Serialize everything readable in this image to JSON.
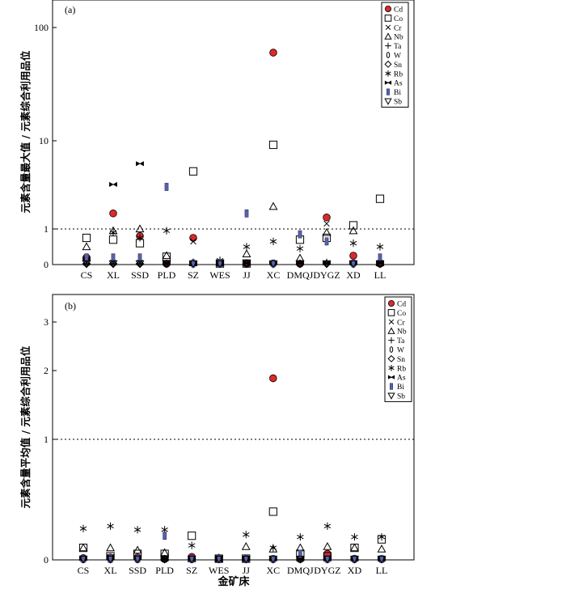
{
  "chart_data": [
    {
      "type": "scatter",
      "panel_label": "(a)",
      "ylabel": "元素含量最大值 / 元素综合利用品位",
      "xlabel": "",
      "categories": [
        "CS",
        "XL",
        "SSD",
        "PLD",
        "SZ",
        "WES",
        "JJ",
        "XC",
        "DMQJ",
        "DYGZ",
        "XD",
        "LL"
      ],
      "y_scale": "piecewise",
      "yticks": [
        0,
        1,
        10,
        100
      ],
      "ytick_labels": [
        "0",
        "1",
        "10",
        "100"
      ],
      "reference_line": 1,
      "series": [
        {
          "name": "Cd",
          "marker": "filled-circle",
          "values": [
            0.2,
            1.5,
            0.8,
            0.02,
            0.75,
            0.02,
            0.02,
            60,
            0.02,
            1.35,
            0.25,
            0.02
          ]
        },
        {
          "name": "Co",
          "marker": "open-square",
          "values": [
            0.75,
            0.7,
            0.6,
            0.22,
            4.5,
            0.03,
            0.03,
            9,
            0.7,
            0.75,
            1.1,
            2.2
          ]
        },
        {
          "name": "Cr",
          "marker": "x",
          "values": [
            0.05,
            0.05,
            0.05,
            0.03,
            0.65,
            0.04,
            0.04,
            0.03,
            0.04,
            1.15,
            0.04,
            0.05
          ]
        },
        {
          "name": "Nb",
          "marker": "open-triangle",
          "values": [
            0.5,
            0.95,
            1.0,
            0.25,
            0.05,
            0.05,
            0.3,
            1.8,
            0.18,
            0.9,
            0.95,
            0.05
          ]
        },
        {
          "name": "Ta",
          "marker": "plus",
          "values": [
            0.02,
            0.02,
            0.02,
            0.02,
            0.02,
            0.02,
            0.02,
            0.02,
            0.02,
            0.02,
            0.02,
            0.02
          ]
        },
        {
          "name": "W",
          "marker": "open-ellipse",
          "values": [
            0.02,
            0.02,
            0.02,
            0.02,
            0.02,
            0.02,
            0.02,
            0.02,
            0.02,
            0.02,
            0.02,
            0.02
          ]
        },
        {
          "name": "Sn",
          "marker": "open-diamond",
          "values": [
            0.02,
            0.02,
            0.02,
            0.02,
            0.02,
            0.02,
            0.02,
            0.02,
            0.02,
            0.02,
            0.02,
            0.02
          ]
        },
        {
          "name": "Rb",
          "marker": "star",
          "values": [
            0.18,
            0.9,
            0.75,
            0.95,
            0.05,
            0.12,
            0.5,
            0.65,
            0.45,
            0.06,
            0.6,
            0.5
          ]
        },
        {
          "name": "As",
          "marker": "bowtie",
          "values": [
            0.15,
            3.2,
            5.5,
            0.05,
            0.05,
            0.05,
            0.05,
            0.05,
            0.05,
            0.05,
            0.05,
            0.05
          ]
        },
        {
          "name": "Bi",
          "marker": "filled-bar",
          "values": [
            0.2,
            0.2,
            0.2,
            3.0,
            0.03,
            0.03,
            1.5,
            0.03,
            0.85,
            0.65,
            0.03,
            0.2
          ]
        },
        {
          "name": "Sb",
          "marker": "open-down-triangle",
          "values": [
            0.01,
            0.01,
            0.01,
            0.01,
            0.01,
            0.01,
            0.01,
            0.01,
            0.01,
            0.01,
            0.01,
            0.01
          ]
        }
      ]
    },
    {
      "type": "scatter",
      "panel_label": "(b)",
      "ylabel": "元素含量平均值 / 元素综合利用品位",
      "xlabel": "金矿床",
      "categories": [
        "CS",
        "XL",
        "SSD",
        "PLD",
        "SZ",
        "WES",
        "JJ",
        "XC",
        "DMQJ",
        "DYGZ",
        "XD",
        "LL"
      ],
      "y_scale": "piecewise",
      "yticks": [
        0,
        1,
        2,
        3
      ],
      "ytick_labels": [
        "0",
        "1",
        "2",
        "3"
      ],
      "reference_line": 1,
      "series": [
        {
          "name": "Cd",
          "marker": "filled-circle",
          "values": [
            0.015,
            0.02,
            0.02,
            0.005,
            0.025,
            0.005,
            0.005,
            1.85,
            0.005,
            0.05,
            0.01,
            0.005
          ]
        },
        {
          "name": "Co",
          "marker": "open-square",
          "values": [
            0.1,
            0.03,
            0.05,
            0.05,
            0.2,
            0.01,
            0.01,
            0.4,
            0.05,
            0.03,
            0.1,
            0.17
          ]
        },
        {
          "name": "Cr",
          "marker": "x",
          "values": [
            0.005,
            0.005,
            0.005,
            0.005,
            0.005,
            0.005,
            0.005,
            0.005,
            0.005,
            0.005,
            0.005,
            0.005
          ]
        },
        {
          "name": "Nb",
          "marker": "open-triangle",
          "values": [
            0.1,
            0.1,
            0.08,
            0.06,
            0.01,
            0.01,
            0.11,
            0.09,
            0.1,
            0.11,
            0.1,
            0.09
          ]
        },
        {
          "name": "Ta",
          "marker": "plus",
          "values": [
            0.005,
            0.005,
            0.005,
            0.005,
            0.005,
            0.005,
            0.005,
            0.005,
            0.005,
            0.005,
            0.005,
            0.005
          ]
        },
        {
          "name": "W",
          "marker": "open-ellipse",
          "values": [
            0.005,
            0.005,
            0.005,
            0.005,
            0.005,
            0.005,
            0.005,
            0.005,
            0.005,
            0.005,
            0.005,
            0.005
          ]
        },
        {
          "name": "Sn",
          "marker": "open-diamond",
          "values": [
            0.003,
            0.003,
            0.003,
            0.003,
            0.003,
            0.003,
            0.003,
            0.003,
            0.003,
            0.003,
            0.003,
            0.003
          ]
        },
        {
          "name": "Rb",
          "marker": "star",
          "values": [
            0.26,
            0.28,
            0.25,
            0.25,
            0.12,
            0.02,
            0.21,
            0.1,
            0.19,
            0.28,
            0.19,
            0.19
          ]
        },
        {
          "name": "As",
          "marker": "bowtie",
          "values": [
            0.01,
            0.03,
            0.02,
            0.005,
            0.005,
            0.005,
            0.005,
            0.005,
            0.005,
            0.005,
            0.005,
            0.005
          ]
        },
        {
          "name": "Bi",
          "marker": "filled-bar",
          "values": [
            0.005,
            0.005,
            0.005,
            0.2,
            0.005,
            0.005,
            0.005,
            0.005,
            0.05,
            0.005,
            0.005,
            0.005
          ]
        },
        {
          "name": "Sb",
          "marker": "open-down-triangle",
          "values": [
            0.002,
            0.002,
            0.002,
            0.002,
            0.002,
            0.002,
            0.002,
            0.002,
            0.002,
            0.002,
            0.002,
            0.002
          ]
        }
      ]
    }
  ],
  "colors": {
    "cd_fill": "#e02828",
    "bi_fill": "#5a63a8",
    "stroke": "#000000",
    "background": "#ffffff"
  }
}
